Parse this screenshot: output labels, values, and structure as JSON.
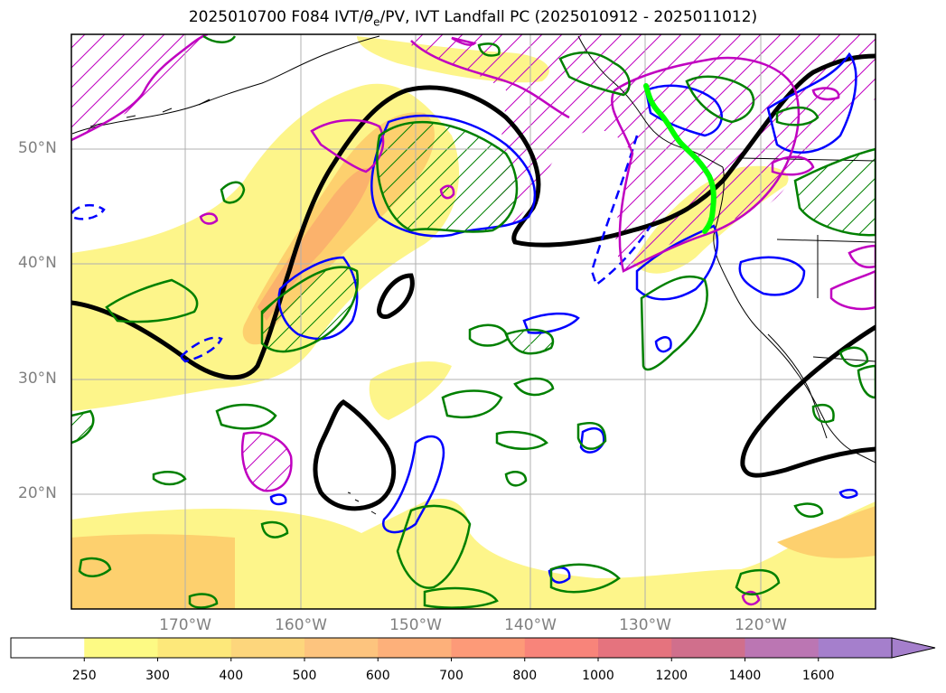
{
  "title": {
    "prefix": "2025010700 F084 IVT/",
    "theta": "θ",
    "theta_sub": "e",
    "suffix": "/PV, IVT Landfall PC (2025010912 - 2025011012)"
  },
  "map": {
    "lat_labels": [
      "50°N",
      "40°N",
      "30°N",
      "20°N"
    ],
    "lon_labels": [
      "170°W",
      "160°W",
      "150°W",
      "140°W",
      "130°W",
      "120°W"
    ]
  },
  "colorbar": {
    "labels": [
      "250",
      "300",
      "400",
      "500",
      "600",
      "700",
      "800",
      "1000",
      "1200",
      "1400",
      "1600"
    ],
    "colors": [
      "#ffffff",
      "#fdfa84",
      "#fde87a",
      "#fdd67c",
      "#fdc47e",
      "#fdb07a",
      "#fd9a78",
      "#f8847a",
      "#e5737e",
      "#d06f8c",
      "#bb76b3",
      "#a57fcc"
    ]
  },
  "colors": {
    "ivt_light": "#fdf58a",
    "ivt_mid": "#fdd06e",
    "ivt_high": "#fbb26c",
    "contour_black": "#000000",
    "contour_blue": "#0000ff",
    "contour_green": "#008000",
    "contour_magenta": "#c000c0",
    "landfall_green": "#00ff00"
  }
}
